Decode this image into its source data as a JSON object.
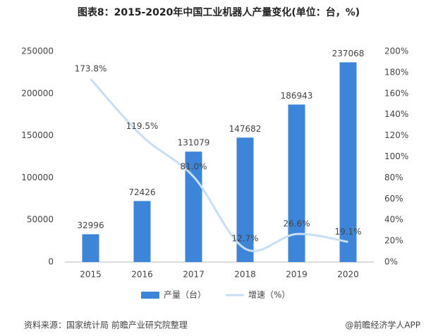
{
  "chart_data": {
    "type": "bar",
    "title": "图表8：2015-2020年中国工业机器人产量变化(单位：台，%)",
    "categories": [
      "2015",
      "2016",
      "2017",
      "2018",
      "2019",
      "2020"
    ],
    "series": [
      {
        "name": "产量（台）",
        "type": "bar",
        "color": "#3d85d9",
        "values": [
          32996,
          72426,
          131079,
          147682,
          186943,
          237068
        ]
      },
      {
        "name": "增速（%）",
        "type": "line",
        "axis": "y2",
        "color": "#c8def2",
        "values": [
          173.8,
          119.5,
          81.0,
          12.7,
          26.6,
          19.1
        ],
        "value_labels": [
          "173.8%",
          "119.5%",
          "81.0%",
          "12.7%",
          "26.6%",
          "19.1%"
        ]
      }
    ],
    "ylim": [
      0,
      250000
    ],
    "yticks": [
      0,
      50000,
      100000,
      150000,
      200000,
      250000
    ],
    "y2lim": [
      0,
      200
    ],
    "y2ticks": [
      {
        "value": 0,
        "label": "0%"
      },
      {
        "value": 20,
        "label": "20%"
      },
      {
        "value": 40,
        "label": "40%"
      },
      {
        "value": 60,
        "label": "60%"
      },
      {
        "value": 80,
        "label": "80%"
      },
      {
        "value": 100,
        "label": "100%"
      },
      {
        "value": 120,
        "label": "120%"
      },
      {
        "value": 140,
        "label": "140%"
      },
      {
        "value": 160,
        "label": "160%"
      },
      {
        "value": 180,
        "label": "180%"
      },
      {
        "value": 200,
        "label": "200%"
      }
    ],
    "legend": "bottom",
    "source": "资料来源：国家统计局 前瞻产业研究院整理",
    "credit": "@前瞻经济学人APP"
  }
}
